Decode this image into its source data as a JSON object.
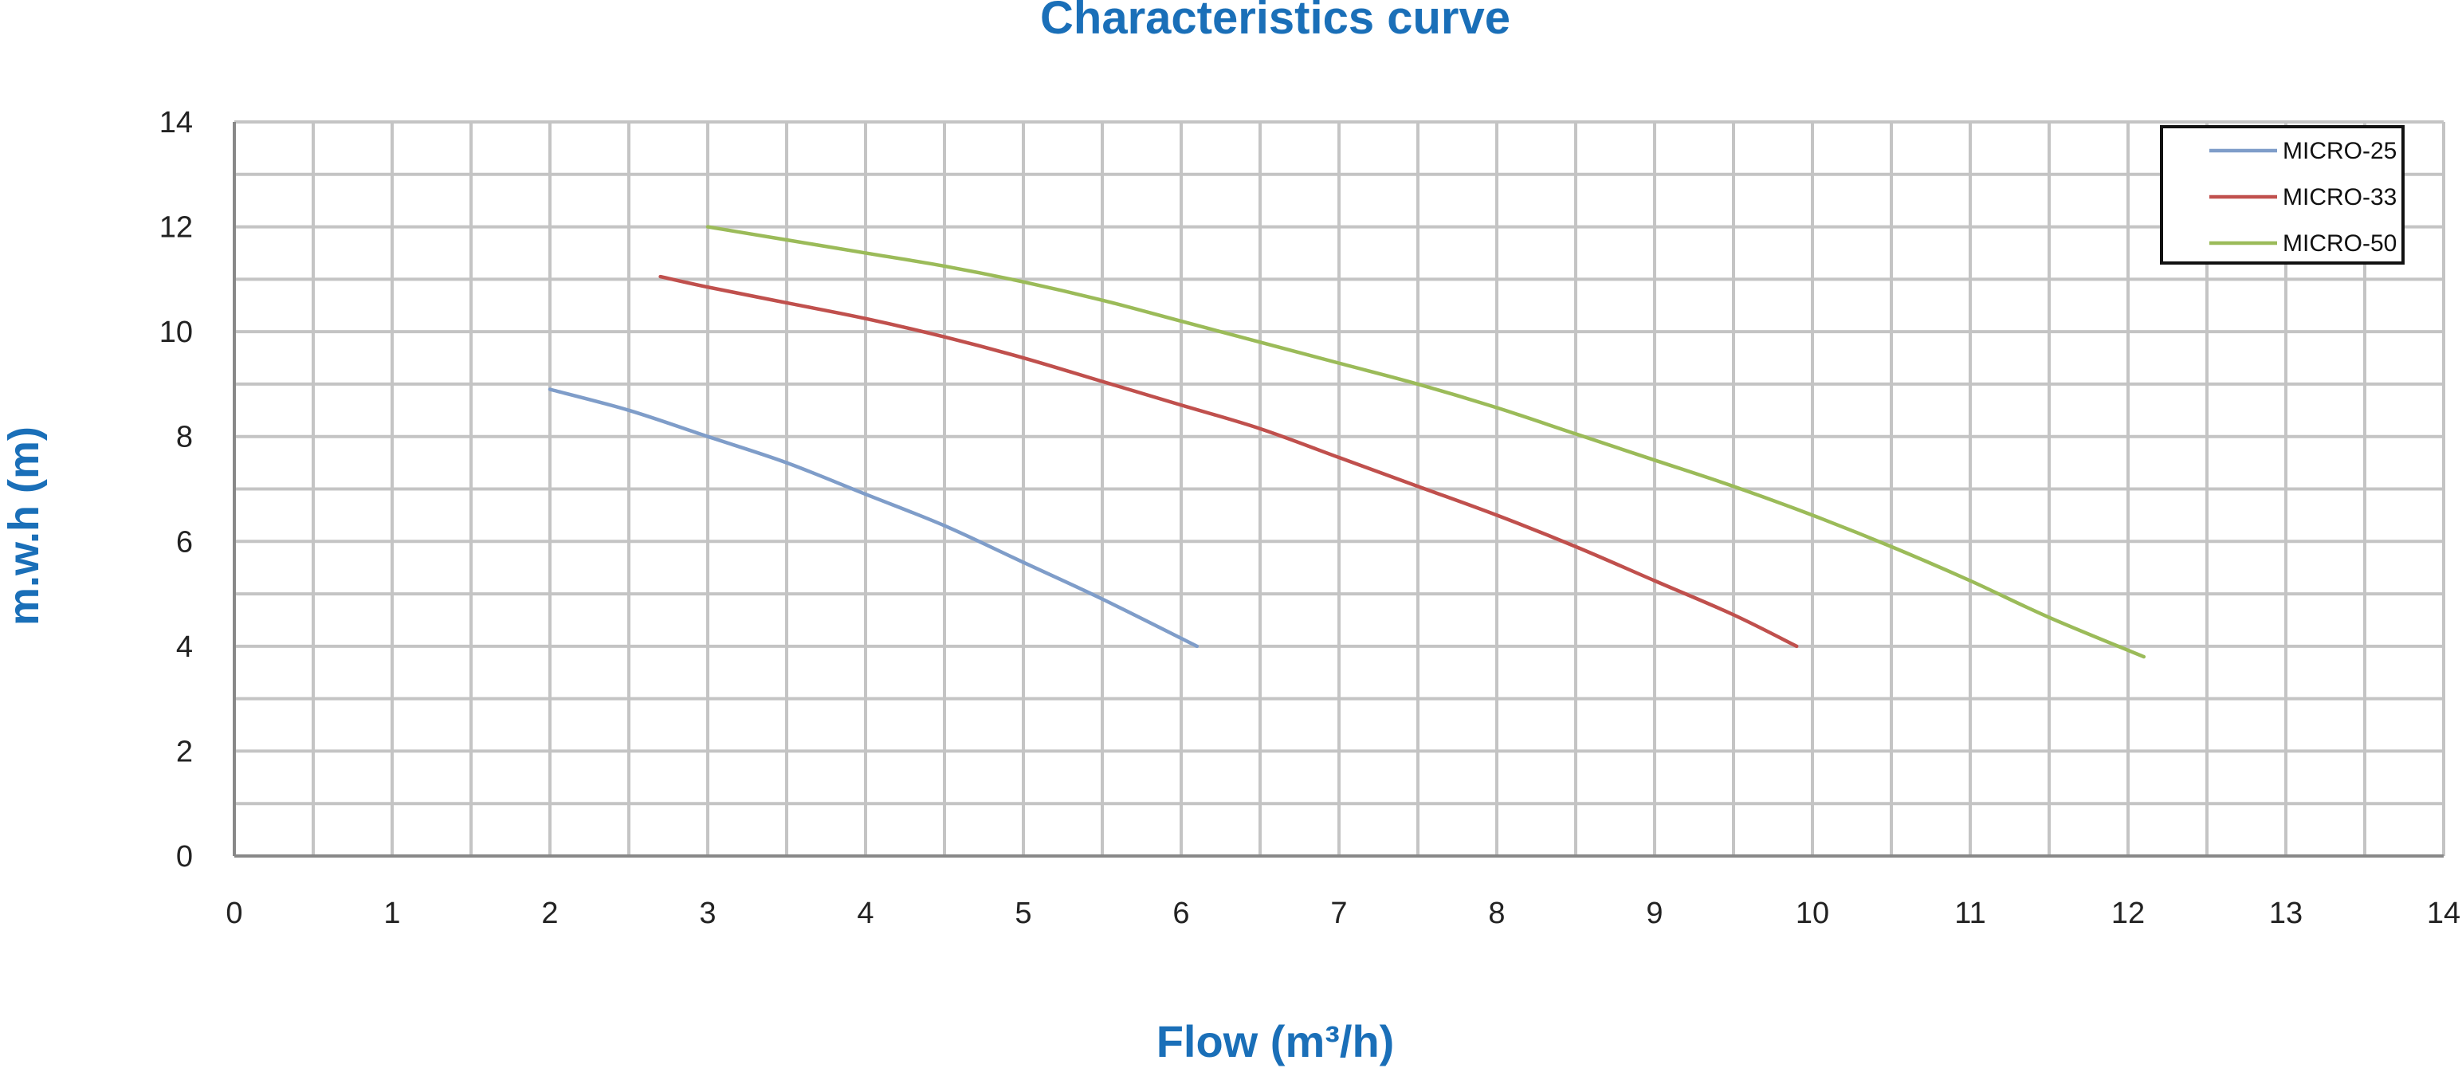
{
  "chart_data": {
    "type": "line",
    "title": "Characteristics curve",
    "xlabel": "Flow (m³/h)",
    "ylabel": "m.w.h (m)",
    "xlim": [
      0,
      14
    ],
    "ylim": [
      0,
      14
    ],
    "x_ticks": [
      "0",
      "1",
      "2",
      "3",
      "4",
      "5",
      "6",
      "7",
      "8",
      "9",
      "10",
      "11",
      "12",
      "13",
      "14"
    ],
    "y_ticks": [
      "0",
      "2",
      "4",
      "6",
      "8",
      "10",
      "12",
      "14"
    ],
    "grid": true,
    "minor_grid_step": 0.5,
    "minor_grid_step_y": 1,
    "legend_position": "top-right",
    "series": [
      {
        "name": "MICRO-25",
        "color": "#7f9dc9",
        "points": [
          [
            2.0,
            8.9
          ],
          [
            2.5,
            8.5
          ],
          [
            3.0,
            8.0
          ],
          [
            3.5,
            7.5
          ],
          [
            4.0,
            6.9
          ],
          [
            4.5,
            6.3
          ],
          [
            5.0,
            5.6
          ],
          [
            5.5,
            4.9
          ],
          [
            6.1,
            4.0
          ]
        ]
      },
      {
        "name": "MICRO-33",
        "color": "#c0504d",
        "points": [
          [
            2.7,
            11.05
          ],
          [
            3.0,
            10.85
          ],
          [
            3.5,
            10.55
          ],
          [
            4.0,
            10.25
          ],
          [
            4.5,
            9.9
          ],
          [
            5.0,
            9.5
          ],
          [
            5.5,
            9.05
          ],
          [
            6.0,
            8.6
          ],
          [
            6.5,
            8.15
          ],
          [
            7.0,
            7.6
          ],
          [
            7.5,
            7.05
          ],
          [
            8.0,
            6.5
          ],
          [
            8.5,
            5.9
          ],
          [
            9.0,
            5.25
          ],
          [
            9.5,
            4.6
          ],
          [
            9.9,
            4.0
          ]
        ]
      },
      {
        "name": "MICRO-50",
        "color": "#9bbb59",
        "points": [
          [
            3.0,
            12.0
          ],
          [
            3.5,
            11.75
          ],
          [
            4.0,
            11.5
          ],
          [
            4.5,
            11.25
          ],
          [
            5.0,
            10.95
          ],
          [
            5.5,
            10.6
          ],
          [
            6.0,
            10.2
          ],
          [
            6.5,
            9.8
          ],
          [
            7.0,
            9.4
          ],
          [
            7.5,
            9.0
          ],
          [
            8.0,
            8.55
          ],
          [
            8.5,
            8.05
          ],
          [
            9.0,
            7.55
          ],
          [
            9.5,
            7.05
          ],
          [
            10.0,
            6.5
          ],
          [
            10.5,
            5.9
          ],
          [
            11.0,
            5.25
          ],
          [
            11.5,
            4.55
          ],
          [
            12.1,
            3.8
          ]
        ]
      }
    ]
  }
}
